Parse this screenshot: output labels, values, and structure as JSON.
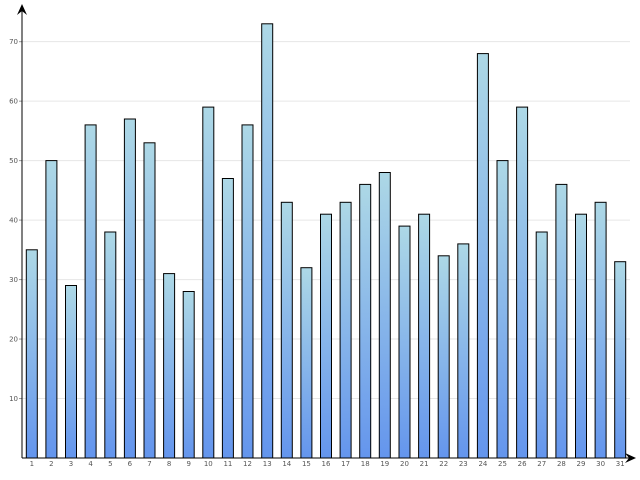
{
  "chart_data": {
    "type": "bar",
    "title": "",
    "xlabel": "",
    "ylabel": "",
    "categories": [
      "1",
      "2",
      "3",
      "4",
      "5",
      "6",
      "7",
      "8",
      "9",
      "10",
      "11",
      "12",
      "13",
      "14",
      "15",
      "16",
      "17",
      "18",
      "19",
      "20",
      "21",
      "22",
      "23",
      "24",
      "25",
      "26",
      "27",
      "28",
      "29",
      "30",
      "31"
    ],
    "values": [
      35,
      50,
      29,
      56,
      38,
      57,
      53,
      31,
      28,
      59,
      47,
      56,
      73,
      43,
      32,
      41,
      43,
      46,
      48,
      39,
      41,
      34,
      36,
      68,
      50,
      59,
      38,
      46,
      41,
      43,
      33
    ],
    "ylim": [
      0,
      76
    ],
    "yticks": [
      10,
      20,
      30,
      40,
      50,
      60,
      70
    ],
    "grid": true,
    "legend": "none",
    "colors": {
      "bar_top": "#add8e6",
      "bar_bottom": "#6495ed",
      "bar_stroke": "#000000",
      "grid": "#e6e6e6",
      "axis": "#000000"
    }
  }
}
